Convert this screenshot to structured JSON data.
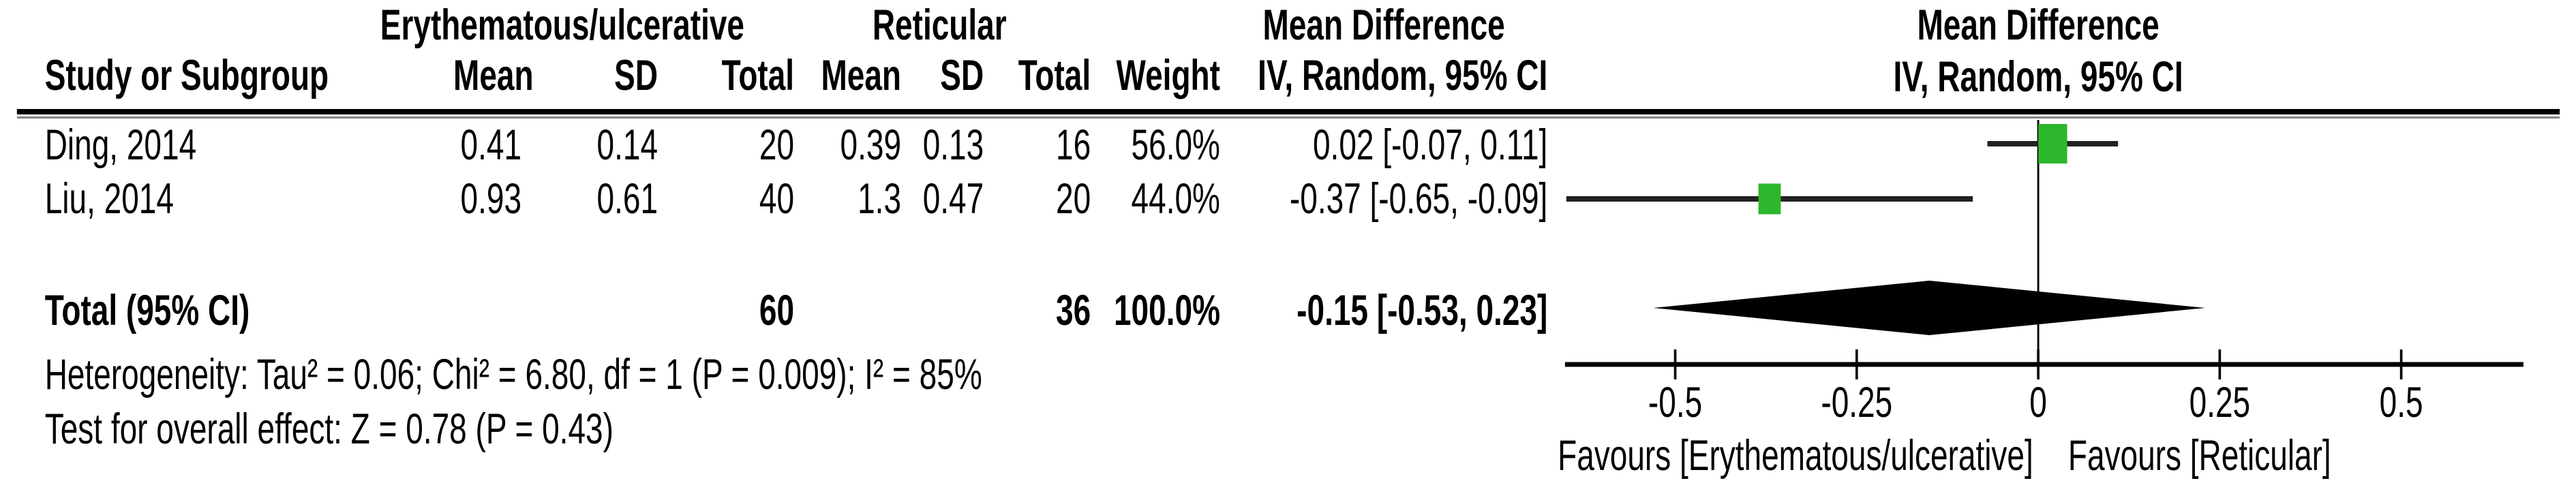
{
  "table": {
    "group1_header": "Erythematous/ulcerative",
    "group2_header": "Reticular",
    "md_header_line1": "Mean Difference",
    "md_header_line2": "IV, Random, 95% CI",
    "plot_header_line1": "Mean Difference",
    "plot_header_line2": "IV, Random, 95% CI",
    "columns": {
      "study": "Study or Subgroup",
      "mean": "Mean",
      "sd": "SD",
      "total": "Total",
      "weight": "Weight"
    },
    "rows": [
      {
        "study": "Ding, 2014",
        "mean1": "0.41",
        "sd1": "0.14",
        "total1": "20",
        "mean2": "0.39",
        "sd2": "0.13",
        "total2": "16",
        "weight": "56.0%",
        "ci_text": "0.02 [-0.07, 0.11]"
      },
      {
        "study": "Liu, 2014",
        "mean1": "0.93",
        "sd1": "0.61",
        "total1": "40",
        "mean2": "1.3",
        "sd2": "0.47",
        "total2": "20",
        "weight": "44.0%",
        "ci_text": "-0.37 [-0.65, -0.09]"
      }
    ],
    "total_row": {
      "label": "Total (95% CI)",
      "total1": "60",
      "total2": "36",
      "weight": "100.0%",
      "ci_text": "-0.15 [-0.53, 0.23]"
    },
    "heterogeneity": "Heterogeneity: Tau² = 0.06; Chi² = 6.80, df = 1 (P = 0.009); I² = 85%",
    "overall_effect": "Test for overall effect: Z = 0.78 (P = 0.43)"
  },
  "chart_data": {
    "type": "forest",
    "effect_measure": "Mean Difference",
    "method": "IV, Random, 95% CI",
    "studies": [
      {
        "name": "Ding, 2014",
        "md": 0.02,
        "ci_low": -0.07,
        "ci_high": 0.11,
        "weight_pct": 56.0
      },
      {
        "name": "Liu, 2014",
        "md": -0.37,
        "ci_low": -0.65,
        "ci_high": -0.09,
        "weight_pct": 44.0
      }
    ],
    "total": {
      "md": -0.15,
      "ci_low": -0.53,
      "ci_high": 0.23
    },
    "axis": {
      "ticks": [
        -0.5,
        -0.25,
        0,
        0.25,
        0.5
      ],
      "tick_labels": [
        "-0.5",
        "-0.25",
        "0",
        "0.25",
        "0.5"
      ],
      "min": -0.65,
      "max": 0.67,
      "grid": false
    },
    "favours_left": "Favours [Erythematous/ulcerative]",
    "favours_right": "Favours [Reticular]",
    "marker_color": "#2CB72C",
    "ci_line_color": "#222222",
    "diamond_color": "#000000"
  }
}
